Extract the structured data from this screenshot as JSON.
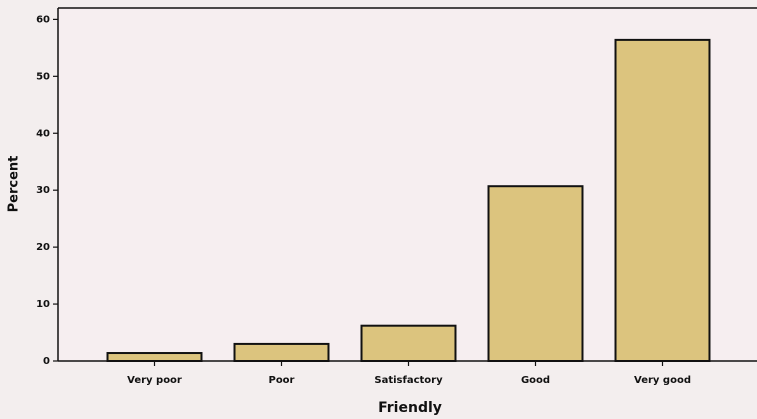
{
  "chart_data": {
    "type": "bar",
    "x_label": "Friendly",
    "y_label": "Percent",
    "categories": [
      "Very poor",
      "Poor",
      "Satisfactory",
      "Good",
      "Very good"
    ],
    "values": [
      1.4,
      3.0,
      6.2,
      30.7,
      56.4
    ],
    "color": "#dcc47e",
    "ylim": [
      0,
      62
    ],
    "yticks": [
      0,
      10,
      20,
      30,
      40,
      50,
      60
    ],
    "grid": false
  }
}
